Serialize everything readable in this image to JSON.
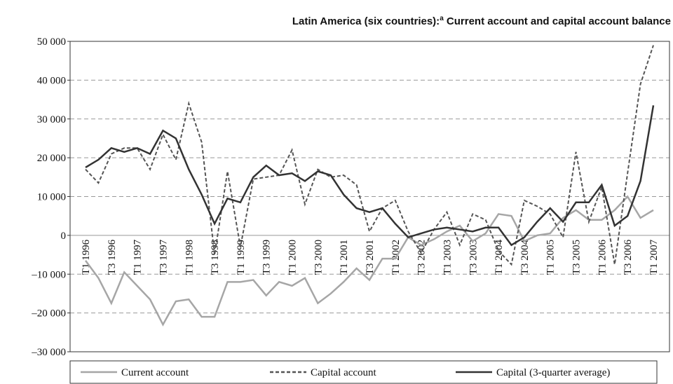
{
  "chart_data": {
    "type": "line",
    "title": [
      "Latin America (six countries):",
      "a",
      " Current account and capital account balance"
    ],
    "categories": [
      "T1 1996",
      null,
      "T3 1996",
      null,
      "T1 1997",
      null,
      "T3 1997",
      null,
      "T1 1998",
      null,
      "T3 1998",
      null,
      "T1 1999",
      null,
      "T3 1999",
      null,
      "T1 2000",
      null,
      "T3 2000",
      null,
      "T1 2001",
      null,
      "T3 2001",
      null,
      "T1 2002",
      null,
      "T3 2002",
      null,
      "T1 2003",
      null,
      "T3 2003",
      null,
      "T1 2004",
      null,
      "T3 2004",
      null,
      "T1 2005",
      null,
      "T3 2005",
      null,
      "T1 2006",
      null,
      "T3 2006",
      null,
      "T1 2007"
    ],
    "series": [
      {
        "name": "Current account",
        "color": "#a6a6a6",
        "dash": "solid",
        "values": [
          -6500,
          -11000,
          -17500,
          -9500,
          -13000,
          -16500,
          -23000,
          -17000,
          -16500,
          -21000,
          -21000,
          -12000,
          -12000,
          -11500,
          -15500,
          -12000,
          -13000,
          -11000,
          -17500,
          -15000,
          -12000,
          -8500,
          -11500,
          -6000,
          -6000,
          -500,
          -2500,
          -1000,
          1000,
          2500,
          -1500,
          500,
          5500,
          5000,
          -1500,
          0,
          500,
          4500,
          6500,
          4000,
          4000,
          6500,
          10000,
          4500,
          6500
        ]
      },
      {
        "name": "Capital account",
        "color": "#555555",
        "dash": "dashed",
        "values": [
          17000,
          13500,
          21000,
          22500,
          22500,
          17000,
          26000,
          19500,
          34000,
          24000,
          -5000,
          16500,
          -3000,
          14500,
          15000,
          15500,
          22000,
          8000,
          17000,
          15000,
          15500,
          13000,
          1000,
          7000,
          9000,
          1000,
          -4500,
          1500,
          6000,
          -2500,
          5500,
          4000,
          -4000,
          -7500,
          9000,
          7500,
          5500,
          -500,
          21500,
          3500,
          12500,
          -7500,
          16000,
          39000,
          49000
        ]
      },
      {
        "name": "Capital (3-quarter average)",
        "color": "#333333",
        "dash": "solid",
        "values": [
          17500,
          19500,
          22500,
          21500,
          22500,
          21000,
          27000,
          25000,
          17000,
          10500,
          3000,
          9500,
          8500,
          15000,
          18000,
          15500,
          16000,
          14000,
          16500,
          15500,
          10500,
          7000,
          6000,
          7000,
          3000,
          -500,
          500,
          1500,
          2000,
          1500,
          1000,
          2000,
          2000,
          -2500,
          -500,
          3500,
          7000,
          3500,
          8500,
          8500,
          13000,
          2500,
          5000,
          14000,
          33500
        ]
      }
    ],
    "ylim": [
      -30000,
      50000
    ],
    "yticks": [
      {
        "value": -30000,
        "label": "–30 000"
      },
      {
        "value": -20000,
        "label": "–20 000"
      },
      {
        "value": -10000,
        "label": "–10 000"
      },
      0,
      {
        "value": 10000,
        "label": "10 000"
      },
      {
        "value": 20000,
        "label": "20 000"
      },
      {
        "value": 30000,
        "label": "30 000"
      },
      {
        "value": 40000,
        "label": "40 000"
      },
      {
        "value": 50000,
        "label": "50 000"
      }
    ],
    "grid": true,
    "legend": "bottom"
  }
}
